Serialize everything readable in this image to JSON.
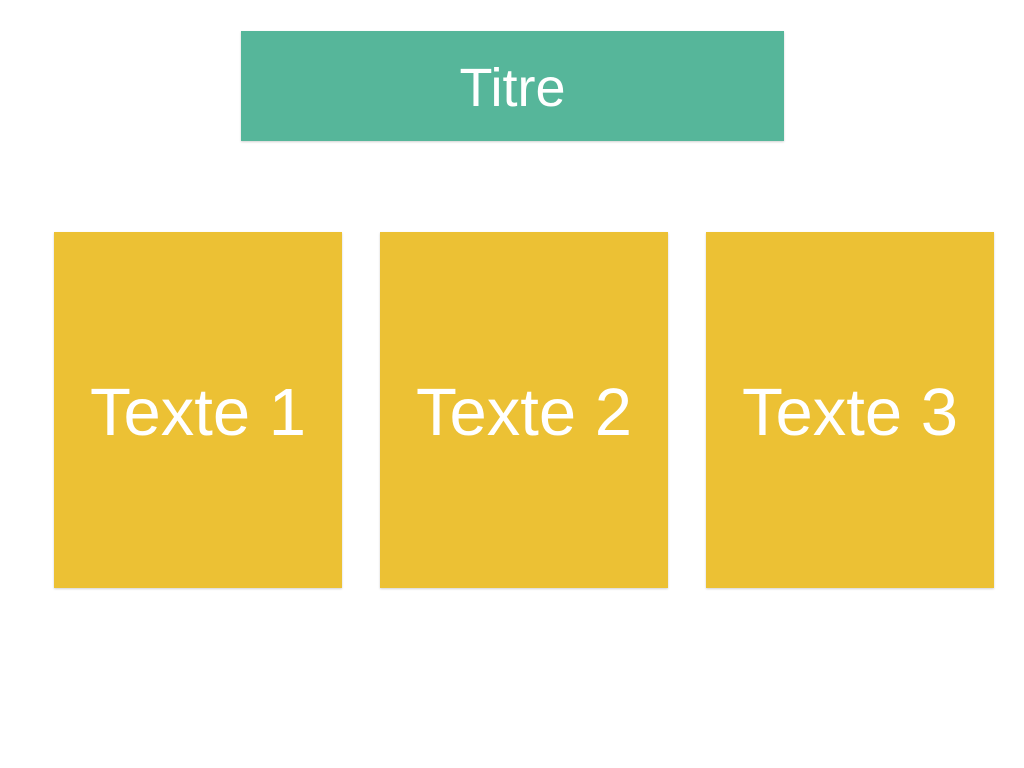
{
  "title": "Titre",
  "cards": [
    {
      "label": "Texte 1"
    },
    {
      "label": "Texte 2"
    },
    {
      "label": "Texte 3"
    }
  ],
  "colors": {
    "title_background": "#56B69A",
    "card_background": "#ECC134",
    "text": "#FFFFFF",
    "page_background": "#FFFFFF"
  }
}
